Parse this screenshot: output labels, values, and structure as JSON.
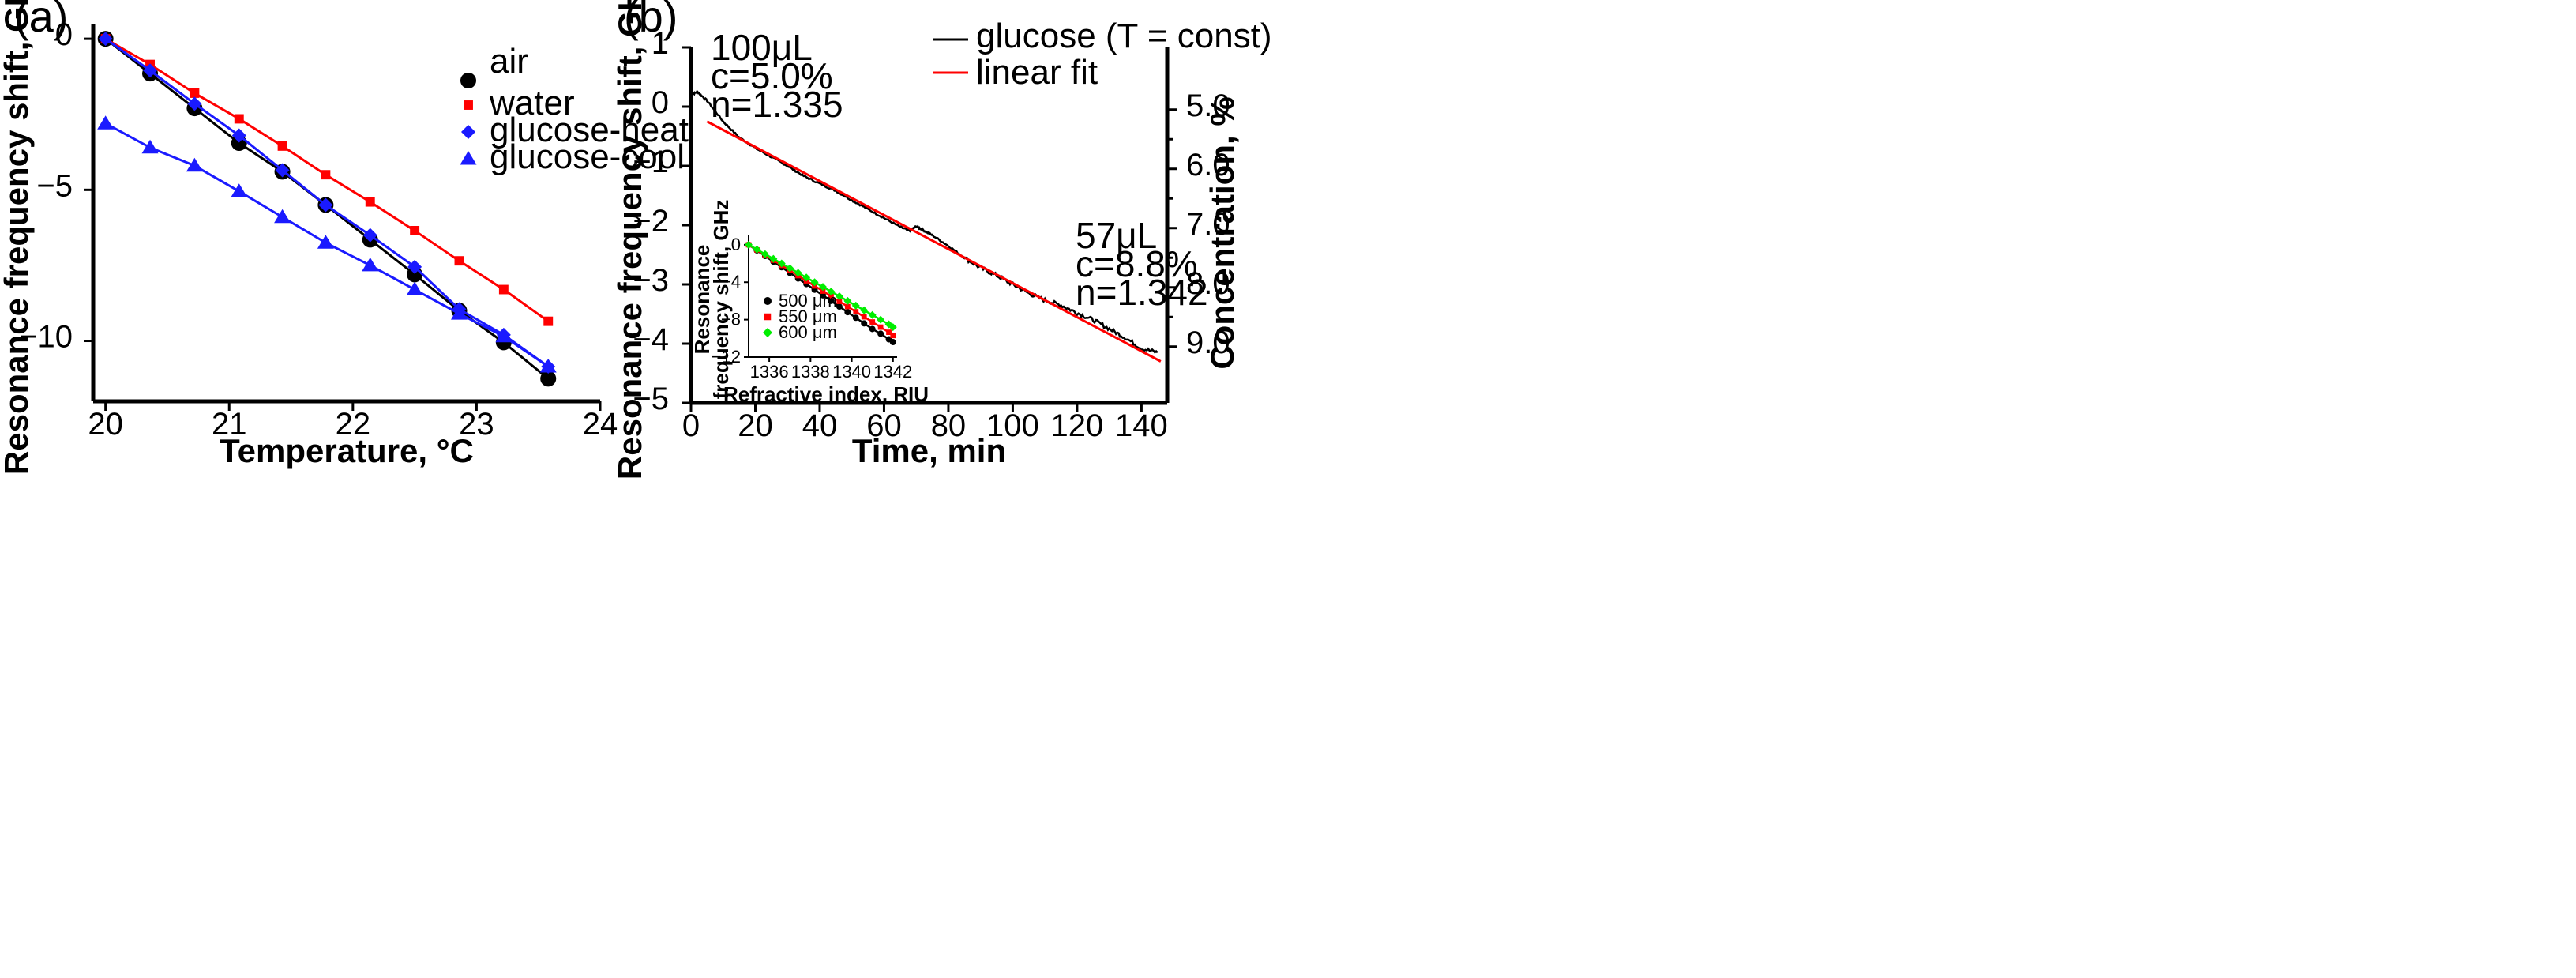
{
  "chart_data": [
    {
      "id": "a",
      "panel_label": "(a)",
      "type": "line",
      "xlabel": "Temperature, °C",
      "ylabel": "Resonance frequency shift, GHz",
      "xlim": [
        19.9,
        24.0
      ],
      "ylim": [
        -12.0,
        0.5
      ],
      "xticks": [
        20,
        21,
        22,
        23,
        24
      ],
      "xtick_labels": [
        "20",
        "21",
        "22",
        "23",
        "24"
      ],
      "yticks": [
        0,
        -5,
        -10
      ],
      "ytick_labels": [
        "0",
        "−5",
        "−10"
      ],
      "series": [
        {
          "name": "air",
          "color": "#000000",
          "marker": "circle",
          "x": [
            20.0,
            20.36,
            20.72,
            21.08,
            21.43,
            21.78,
            22.14,
            22.5,
            22.86,
            23.22,
            23.58
          ],
          "y": [
            0.0,
            -1.15,
            -2.3,
            -3.45,
            -4.4,
            -5.5,
            -6.65,
            -7.8,
            -9.0,
            -10.05,
            -11.25
          ]
        },
        {
          "name": "water",
          "color": "#ff0000",
          "marker": "square",
          "x": [
            20.0,
            20.36,
            20.72,
            21.08,
            21.43,
            21.78,
            22.14,
            22.5,
            22.86,
            23.22,
            23.58
          ],
          "y": [
            0.0,
            -0.85,
            -1.8,
            -2.65,
            -3.55,
            -4.5,
            -5.4,
            -6.35,
            -7.35,
            -8.3,
            -9.35
          ]
        },
        {
          "name": "glucose-heat",
          "color": "#1a1aff",
          "marker": "diamond",
          "x": [
            20.0,
            20.36,
            20.72,
            21.08,
            21.43,
            21.78,
            22.14,
            22.5,
            22.86,
            23.22,
            23.58
          ],
          "y": [
            0.0,
            -1.05,
            -2.15,
            -3.2,
            -4.35,
            -5.5,
            -6.5,
            -7.55,
            -8.95,
            -9.8,
            -10.85
          ]
        },
        {
          "name": "glucose-cool",
          "color": "#1a1aff",
          "marker": "triangle",
          "x": [
            20.0,
            20.36,
            20.72,
            21.08,
            21.43,
            21.78,
            22.14,
            22.5,
            22.86,
            23.22,
            23.58
          ],
          "y": [
            -2.8,
            -3.6,
            -4.2,
            -5.05,
            -5.9,
            -6.75,
            -7.5,
            -8.3,
            -9.1,
            -9.85,
            -10.85
          ]
        }
      ],
      "legend_position": "top-right"
    },
    {
      "id": "b",
      "panel_label": "(b)",
      "type": "line",
      "xlabel": "Time, min",
      "ylabel": "Resonance frequency shift, GHz",
      "y2label": "Concentration, %",
      "xlim": [
        0,
        148
      ],
      "ylim": [
        -5.0,
        1.0
      ],
      "xticks": [
        0,
        20,
        40,
        60,
        80,
        100,
        120,
        140
      ],
      "xtick_labels": [
        "0",
        "20",
        "40",
        "60",
        "80",
        "100",
        "120",
        "140"
      ],
      "yticks": [
        1,
        0,
        -1,
        -2,
        -3,
        -4,
        -5
      ],
      "ytick_labels": [
        "1",
        "0",
        "−1",
        "−2",
        "−3",
        "−4",
        "−5"
      ],
      "y2ticks": [
        -0.05,
        -1.05,
        -2.05,
        -3.05,
        -4.05
      ],
      "y2tick_labels": [
        "5.0",
        "6.0",
        "7.0",
        "8.0",
        "9.0"
      ],
      "series": [
        {
          "name": "glucose (T = const)",
          "color": "#000000",
          "style": "noisy-line",
          "x": [
            0,
            2,
            5,
            10,
            15,
            20,
            25,
            30,
            35,
            40,
            45,
            50,
            55,
            60,
            65,
            68,
            70,
            72,
            75,
            80,
            85,
            90,
            95,
            100,
            105,
            110,
            115,
            120,
            125,
            130,
            135,
            140,
            145
          ],
          "y": [
            0.2,
            0.25,
            0.1,
            -0.25,
            -0.52,
            -0.7,
            -0.85,
            -1.0,
            -1.17,
            -1.3,
            -1.42,
            -1.58,
            -1.73,
            -1.88,
            -2.03,
            -2.1,
            -2.02,
            -2.08,
            -2.17,
            -2.35,
            -2.55,
            -2.72,
            -2.85,
            -3.0,
            -3.15,
            -3.27,
            -3.35,
            -3.48,
            -3.6,
            -3.75,
            -3.9,
            -4.08,
            -4.15
          ]
        },
        {
          "name": "linear fit",
          "color": "#ff0000",
          "style": "line",
          "x": [
            5,
            146
          ],
          "y": [
            -0.25,
            -4.3
          ]
        }
      ],
      "annotations": [
        {
          "lines": [
            "100μL",
            "c=5.0%",
            "n=1.335"
          ]
        },
        {
          "lines": [
            "57μL",
            "c=8.8%",
            "n=1.342"
          ]
        }
      ],
      "legend_position": "top-right",
      "inset": {
        "type": "line",
        "xlabel": "Refractive index, RIU",
        "ylabel_lines": [
          "Resonance",
          "frequency shift, GHz"
        ],
        "xlim": [
          1335.0,
          1342.2
        ],
        "ylim": [
          -12,
          1
        ],
        "xticks": [
          1336,
          1338,
          1340,
          1342
        ],
        "xtick_labels": [
          "1336",
          "1338",
          "1340",
          "1342"
        ],
        "yticks": [
          0,
          -4,
          -8,
          -12
        ],
        "ytick_labels": [
          "0",
          "−4",
          "−8",
          "−12"
        ],
        "series": [
          {
            "name": "500 μm",
            "color": "#000000",
            "marker": "circle",
            "x": [
              1335.0,
              1335.4,
              1335.8,
              1336.2,
              1336.6,
              1337.0,
              1337.4,
              1337.8,
              1338.2,
              1338.6,
              1339.0,
              1339.4,
              1339.8,
              1340.2,
              1340.6,
              1341.0,
              1341.4,
              1341.8,
              1342.0
            ],
            "y": [
              0.0,
              -0.6,
              -1.2,
              -1.8,
              -2.4,
              -3.0,
              -3.6,
              -4.2,
              -4.8,
              -5.4,
              -6.0,
              -6.6,
              -7.2,
              -7.8,
              -8.4,
              -9.0,
              -9.5,
              -10.1,
              -10.4
            ]
          },
          {
            "name": "550 μm",
            "color": "#ff0000",
            "marker": "square",
            "x": [
              1335.0,
              1335.4,
              1335.8,
              1336.2,
              1336.6,
              1337.0,
              1337.4,
              1337.8,
              1338.2,
              1338.6,
              1339.0,
              1339.4,
              1339.8,
              1340.2,
              1340.6,
              1341.0,
              1341.4,
              1341.8,
              1342.0
            ],
            "y": [
              0.0,
              -0.55,
              -1.1,
              -1.65,
              -2.2,
              -2.75,
              -3.3,
              -3.85,
              -4.4,
              -4.95,
              -5.5,
              -6.05,
              -6.6,
              -7.15,
              -7.7,
              -8.25,
              -8.8,
              -9.35,
              -9.7
            ]
          },
          {
            "name": "600 μm",
            "color": "#00ee00",
            "marker": "diamond",
            "x": [
              1335.0,
              1335.4,
              1335.8,
              1336.2,
              1336.6,
              1337.0,
              1337.4,
              1337.8,
              1338.2,
              1338.6,
              1339.0,
              1339.4,
              1339.8,
              1340.2,
              1340.6,
              1341.0,
              1341.4,
              1341.8,
              1342.0
            ],
            "y": [
              0.0,
              -0.5,
              -1.0,
              -1.5,
              -2.0,
              -2.5,
              -3.0,
              -3.5,
              -4.0,
              -4.5,
              -5.0,
              -5.5,
              -6.0,
              -6.5,
              -7.0,
              -7.5,
              -8.0,
              -8.5,
              -8.8
            ]
          }
        ],
        "legend_position": "bottom-left"
      }
    }
  ]
}
